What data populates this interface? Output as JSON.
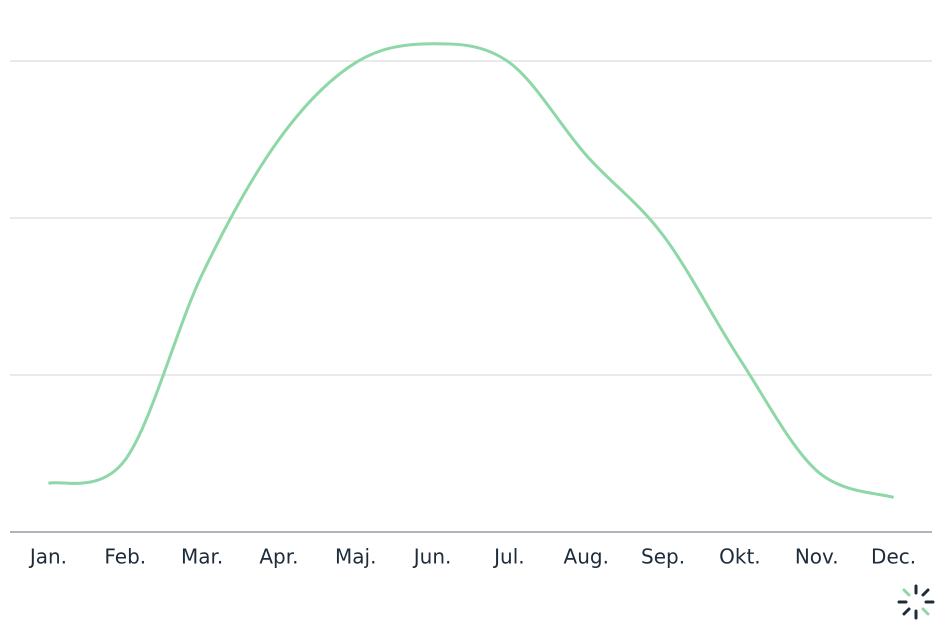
{
  "chart_data": {
    "type": "line",
    "categories": [
      "Jan.",
      "Feb.",
      "Mar.",
      "Apr.",
      "Maj.",
      "Jun.",
      "Jul.",
      "Aug.",
      "Sep.",
      "Okt.",
      "Nov.",
      "Dec."
    ],
    "series": [
      {
        "color": "#8dd8a6",
        "values": [
          0.31,
          0.46,
          1.64,
          2.5,
          2.99,
          3.11,
          2.99,
          2.4,
          1.89,
          1.1,
          0.39,
          0.22
        ]
      }
    ],
    "ylim": [
      0,
      3.2
    ],
    "yticks": [
      0,
      1,
      2,
      3
    ],
    "grid": true
  }
}
